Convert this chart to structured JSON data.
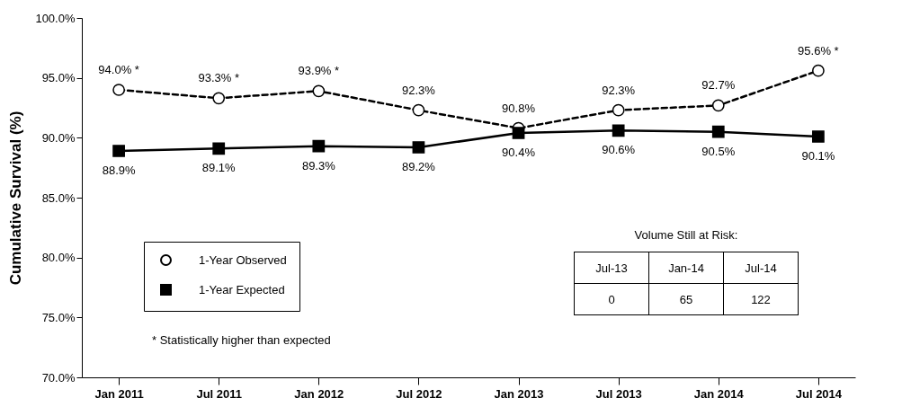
{
  "chart_data": {
    "type": "line",
    "ylabel": "Cumulative Survival (%)",
    "categories": [
      "Jan 2011",
      "Jul 2011",
      "Jan 2012",
      "Jul 2012",
      "Jan 2013",
      "Jul 2013",
      "Jan 2014",
      "Jul 2014"
    ],
    "ylim": [
      70,
      100
    ],
    "yticks": [
      {
        "value": 70,
        "label": "70.0%"
      },
      {
        "value": 75,
        "label": "75.0%"
      },
      {
        "value": 80,
        "label": "80.0%"
      },
      {
        "value": 85,
        "label": "85.0%"
      },
      {
        "value": 90,
        "label": "90.0%"
      },
      {
        "value": 95,
        "label": "95.0%"
      },
      {
        "value": 100,
        "label": "100.0%"
      }
    ],
    "series": [
      {
        "name": "1-Year Observed",
        "color": "#000000",
        "marker": "circle",
        "line_style": "dashed",
        "values": [
          94.0,
          93.3,
          93.9,
          92.3,
          90.8,
          92.3,
          92.7,
          95.6
        ],
        "value_labels": [
          "94.0% *",
          "93.3% *",
          "93.9% *",
          "92.3%",
          "90.8%",
          "92.3%",
          "92.7%",
          "95.6% *"
        ]
      },
      {
        "name": "1-Year Expected",
        "color": "#000000",
        "marker": "square",
        "line_style": "solid",
        "values": [
          88.9,
          89.1,
          89.3,
          89.2,
          90.4,
          90.6,
          90.5,
          90.1
        ],
        "value_labels": [
          "88.9%",
          "89.1%",
          "89.3%",
          "89.2%",
          "90.4%",
          "90.6%",
          "90.5%",
          "90.1%"
        ]
      }
    ],
    "annotations": [
      "* Statistically higher than expected",
      "Volume Still at Risk:",
      "Jul-13",
      "Jan-14",
      "Jul-14",
      "0",
      "65",
      "122"
    ],
    "legend": "bottom left",
    "grid": false
  }
}
